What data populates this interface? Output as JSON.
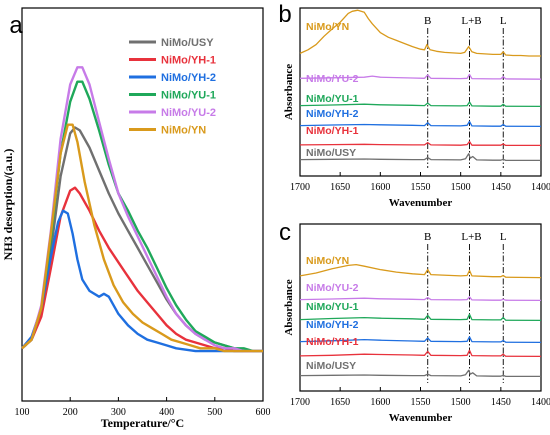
{
  "panels": [
    {
      "id": "a",
      "letter": "a"
    },
    {
      "id": "b",
      "letter": "b"
    },
    {
      "id": "c",
      "letter": "c"
    }
  ],
  "chart_data": [
    {
      "panel": "a",
      "type": "line",
      "xlabel": "Temperature/°C",
      "ylabel": "NH3 desorption/(a.u.)",
      "xlim": [
        100,
        600
      ],
      "xticks": [
        100,
        200,
        300,
        400,
        500,
        600
      ],
      "ylim": [
        0,
        1.05
      ],
      "y_tick_labels": false,
      "legend_position": "top-right",
      "series": [
        {
          "name": "NiMo/USY",
          "color": "#707070",
          "x": [
            100,
            120,
            140,
            160,
            180,
            200,
            210,
            220,
            240,
            260,
            280,
            300,
            320,
            340,
            360,
            380,
            400,
            420,
            440,
            460,
            480,
            500,
            520,
            540,
            560,
            580,
            600
          ],
          "y": [
            0.02,
            0.05,
            0.14,
            0.36,
            0.62,
            0.77,
            0.79,
            0.78,
            0.72,
            0.64,
            0.56,
            0.49,
            0.43,
            0.37,
            0.31,
            0.25,
            0.19,
            0.14,
            0.1,
            0.07,
            0.05,
            0.04,
            0.03,
            0.02,
            0.01,
            0.01,
            0.01
          ]
        },
        {
          "name": "NiMo/YH-1",
          "color": "#e8323c",
          "x": [
            100,
            120,
            140,
            160,
            180,
            200,
            210,
            220,
            240,
            260,
            280,
            300,
            320,
            340,
            360,
            380,
            400,
            420,
            440,
            460,
            480,
            500,
            520,
            540,
            560,
            580,
            600
          ],
          "y": [
            0.02,
            0.05,
            0.13,
            0.3,
            0.48,
            0.57,
            0.58,
            0.56,
            0.5,
            0.43,
            0.37,
            0.32,
            0.27,
            0.22,
            0.18,
            0.14,
            0.1,
            0.07,
            0.05,
            0.04,
            0.03,
            0.02,
            0.02,
            0.01,
            0.01,
            0.01,
            0.01
          ]
        },
        {
          "name": "NiMo/YH-2",
          "color": "#1f6fe0",
          "x": [
            100,
            120,
            140,
            160,
            175,
            185,
            195,
            205,
            215,
            225,
            240,
            260,
            270,
            280,
            290,
            300,
            320,
            340,
            360,
            380,
            400,
            420,
            440,
            460,
            480,
            500,
            520,
            540,
            560,
            580,
            600
          ],
          "y": [
            0.02,
            0.06,
            0.16,
            0.34,
            0.46,
            0.5,
            0.49,
            0.42,
            0.33,
            0.26,
            0.22,
            0.2,
            0.21,
            0.2,
            0.17,
            0.14,
            0.1,
            0.07,
            0.05,
            0.04,
            0.03,
            0.02,
            0.015,
            0.01,
            0.01,
            0.01,
            0.01,
            0.01,
            0.01,
            0.01,
            0.01
          ]
        },
        {
          "name": "NiMo/YU-1",
          "color": "#1fa85a",
          "x": [
            100,
            120,
            140,
            160,
            180,
            200,
            215,
            225,
            240,
            260,
            280,
            300,
            320,
            340,
            360,
            380,
            400,
            420,
            440,
            460,
            480,
            500,
            520,
            540,
            560,
            580,
            600
          ],
          "y": [
            0.02,
            0.05,
            0.16,
            0.4,
            0.7,
            0.88,
            0.95,
            0.95,
            0.89,
            0.78,
            0.66,
            0.56,
            0.5,
            0.43,
            0.37,
            0.3,
            0.23,
            0.17,
            0.12,
            0.08,
            0.06,
            0.04,
            0.03,
            0.02,
            0.02,
            0.01,
            0.01
          ]
        },
        {
          "name": "NiMo/YU-2",
          "color": "#c77be8",
          "x": [
            100,
            120,
            140,
            160,
            180,
            200,
            215,
            225,
            240,
            260,
            280,
            300,
            320,
            340,
            360,
            380,
            400,
            420,
            440,
            460,
            480,
            500,
            520,
            540,
            560,
            580,
            600
          ],
          "y": [
            0.02,
            0.05,
            0.17,
            0.43,
            0.75,
            0.94,
            1.0,
            1.0,
            0.94,
            0.81,
            0.68,
            0.56,
            0.48,
            0.41,
            0.34,
            0.27,
            0.2,
            0.14,
            0.1,
            0.07,
            0.05,
            0.03,
            0.02,
            0.02,
            0.01,
            0.01,
            0.01
          ]
        },
        {
          "name": "NiMo/YN",
          "color": "#d99a1c",
          "x": [
            100,
            120,
            140,
            160,
            180,
            195,
            205,
            215,
            230,
            250,
            270,
            290,
            310,
            330,
            350,
            370,
            390,
            410,
            430,
            450,
            470,
            500,
            520,
            540,
            560,
            580,
            600
          ],
          "y": [
            0.02,
            0.05,
            0.16,
            0.42,
            0.7,
            0.8,
            0.8,
            0.74,
            0.6,
            0.45,
            0.33,
            0.24,
            0.18,
            0.14,
            0.11,
            0.09,
            0.07,
            0.05,
            0.04,
            0.03,
            0.02,
            0.02,
            0.01,
            0.01,
            0.01,
            0.01,
            0.01
          ]
        }
      ]
    },
    {
      "panel": "b",
      "type": "line",
      "xlabel": "Wavenumber",
      "ylabel": "Absorbance",
      "xlim": [
        1700,
        1400
      ],
      "xticks": [
        1700,
        1650,
        1600,
        1550,
        1500,
        1450,
        1400
      ],
      "y_tick_labels": false,
      "reference_lines": [
        {
          "label": "B",
          "x": 1541
        },
        {
          "label": "L+B",
          "x": 1489
        },
        {
          "label": "L",
          "x": 1447
        }
      ],
      "series": [
        {
          "name": "NiMo/YN",
          "color": "#d99a1c",
          "x": [
            1700,
            1690,
            1680,
            1670,
            1660,
            1650,
            1640,
            1635,
            1628,
            1620,
            1615,
            1610,
            1600,
            1590,
            1580,
            1570,
            1560,
            1550,
            1545,
            1542,
            1538,
            1530,
            1520,
            1510,
            1500,
            1495,
            1490,
            1486,
            1480,
            1470,
            1460,
            1450,
            1447,
            1444,
            1435,
            1425,
            1415,
            1400
          ],
          "y": [
            0.05,
            0.12,
            0.22,
            0.38,
            0.52,
            0.65,
            0.82,
            0.86,
            0.88,
            0.84,
            0.72,
            0.62,
            0.45,
            0.36,
            0.3,
            0.24,
            0.18,
            0.13,
            0.12,
            0.22,
            0.12,
            0.09,
            0.07,
            0.06,
            0.05,
            0.07,
            0.18,
            0.08,
            0.05,
            0.04,
            0.03,
            0.03,
            0.08,
            0.02,
            0.01,
            0.01,
            0.0,
            0.0
          ]
        },
        {
          "name": "NiMo/YU-2",
          "color": "#c77be8",
          "x": [
            1700,
            1660,
            1620,
            1610,
            1600,
            1560,
            1545,
            1541,
            1537,
            1500,
            1492,
            1489,
            1486,
            1460,
            1450,
            1447,
            1444,
            1400
          ],
          "y": [
            0.06,
            0.08,
            0.1,
            0.14,
            0.1,
            0.07,
            0.06,
            0.18,
            0.06,
            0.05,
            0.06,
            0.2,
            0.05,
            0.04,
            0.04,
            0.12,
            0.04,
            0.03
          ]
        },
        {
          "name": "NiMo/YU-1",
          "color": "#1fa85a",
          "x": [
            1700,
            1660,
            1620,
            1600,
            1560,
            1545,
            1541,
            1537,
            1500,
            1492,
            1489,
            1486,
            1460,
            1450,
            1447,
            1444,
            1400
          ],
          "y": [
            0.05,
            0.07,
            0.1,
            0.08,
            0.06,
            0.05,
            0.14,
            0.05,
            0.04,
            0.05,
            0.18,
            0.04,
            0.03,
            0.03,
            0.1,
            0.03,
            0.02
          ]
        },
        {
          "name": "NiMo/YH-2",
          "color": "#1f6fe0",
          "x": [
            1700,
            1660,
            1620,
            1600,
            1560,
            1545,
            1541,
            1537,
            1500,
            1492,
            1489,
            1486,
            1460,
            1450,
            1447,
            1444,
            1400
          ],
          "y": [
            0.05,
            0.07,
            0.09,
            0.08,
            0.06,
            0.05,
            0.15,
            0.05,
            0.04,
            0.06,
            0.2,
            0.04,
            0.03,
            0.03,
            0.09,
            0.03,
            0.02
          ]
        },
        {
          "name": "NiMo/YH-1",
          "color": "#e8323c",
          "x": [
            1700,
            1660,
            1620,
            1600,
            1560,
            1545,
            1541,
            1537,
            1500,
            1492,
            1489,
            1486,
            1460,
            1450,
            1447,
            1444,
            1400
          ],
          "y": [
            0.04,
            0.05,
            0.06,
            0.05,
            0.04,
            0.04,
            0.12,
            0.04,
            0.03,
            0.05,
            0.16,
            0.03,
            0.03,
            0.03,
            0.07,
            0.02,
            0.02
          ]
        },
        {
          "name": "NiMo/USY",
          "color": "#707070",
          "x": [
            1700,
            1660,
            1620,
            1600,
            1560,
            1545,
            1541,
            1537,
            1500,
            1494,
            1490,
            1488,
            1485,
            1480,
            1460,
            1450,
            1447,
            1444,
            1400
          ],
          "y": [
            0.05,
            0.06,
            0.07,
            0.06,
            0.05,
            0.05,
            0.12,
            0.05,
            0.04,
            0.08,
            0.26,
            0.1,
            0.16,
            0.04,
            0.03,
            0.03,
            0.06,
            0.02,
            0.02
          ]
        }
      ]
    },
    {
      "panel": "c",
      "type": "line",
      "xlabel": "Wavenumber",
      "ylabel": "Absorbance",
      "xlim": [
        1700,
        1400
      ],
      "xticks": [
        1700,
        1650,
        1600,
        1550,
        1500,
        1450,
        1400
      ],
      "y_tick_labels": false,
      "reference_lines": [
        {
          "label": "B",
          "x": 1541
        },
        {
          "label": "L+B",
          "x": 1489
        },
        {
          "label": "L",
          "x": 1447
        }
      ],
      "series": [
        {
          "name": "NiMo/YN",
          "color": "#d99a1c",
          "x": [
            1700,
            1680,
            1660,
            1640,
            1630,
            1620,
            1600,
            1580,
            1560,
            1545,
            1541,
            1537,
            1500,
            1492,
            1489,
            1486,
            1460,
            1450,
            1447,
            1444,
            1400
          ],
          "y": [
            0.05,
            0.12,
            0.22,
            0.3,
            0.32,
            0.28,
            0.2,
            0.14,
            0.1,
            0.08,
            0.2,
            0.08,
            0.05,
            0.06,
            0.18,
            0.05,
            0.03,
            0.03,
            0.06,
            0.02,
            0.01
          ]
        },
        {
          "name": "NiMo/YU-2",
          "color": "#c77be8",
          "x": [
            1700,
            1660,
            1620,
            1600,
            1560,
            1545,
            1541,
            1537,
            1500,
            1492,
            1489,
            1486,
            1460,
            1450,
            1447,
            1444,
            1400
          ],
          "y": [
            0.05,
            0.07,
            0.1,
            0.08,
            0.06,
            0.05,
            0.12,
            0.05,
            0.04,
            0.05,
            0.15,
            0.04,
            0.03,
            0.03,
            0.06,
            0.03,
            0.02
          ]
        },
        {
          "name": "NiMo/YU-1",
          "color": "#1fa85a",
          "x": [
            1700,
            1660,
            1620,
            1600,
            1560,
            1545,
            1541,
            1537,
            1500,
            1492,
            1489,
            1486,
            1460,
            1450,
            1447,
            1444,
            1400
          ],
          "y": [
            0.05,
            0.09,
            0.12,
            0.1,
            0.08,
            0.06,
            0.2,
            0.06,
            0.05,
            0.06,
            0.24,
            0.05,
            0.04,
            0.04,
            0.12,
            0.03,
            0.02
          ]
        },
        {
          "name": "NiMo/YH-2",
          "color": "#1f6fe0",
          "x": [
            1700,
            1660,
            1620,
            1600,
            1560,
            1545,
            1541,
            1537,
            1500,
            1492,
            1489,
            1486,
            1460,
            1450,
            1447,
            1444,
            1400
          ],
          "y": [
            0.05,
            0.08,
            0.12,
            0.1,
            0.07,
            0.06,
            0.18,
            0.06,
            0.05,
            0.06,
            0.22,
            0.05,
            0.04,
            0.04,
            0.09,
            0.03,
            0.02
          ]
        },
        {
          "name": "NiMo/YH-1",
          "color": "#e8323c",
          "x": [
            1700,
            1660,
            1620,
            1600,
            1560,
            1545,
            1541,
            1537,
            1500,
            1492,
            1489,
            1486,
            1460,
            1450,
            1447,
            1444,
            1400
          ],
          "y": [
            0.04,
            0.06,
            0.1,
            0.09,
            0.07,
            0.06,
            0.2,
            0.06,
            0.05,
            0.06,
            0.24,
            0.05,
            0.04,
            0.04,
            0.1,
            0.03,
            0.02
          ]
        },
        {
          "name": "NiMo/USY",
          "color": "#707070",
          "x": [
            1700,
            1660,
            1620,
            1600,
            1560,
            1545,
            1541,
            1537,
            1500,
            1494,
            1490,
            1488,
            1485,
            1480,
            1460,
            1450,
            1447,
            1444,
            1400
          ],
          "y": [
            0.05,
            0.06,
            0.07,
            0.06,
            0.05,
            0.05,
            0.1,
            0.05,
            0.04,
            0.08,
            0.24,
            0.1,
            0.15,
            0.04,
            0.03,
            0.03,
            0.06,
            0.02,
            0.02
          ]
        }
      ]
    }
  ]
}
